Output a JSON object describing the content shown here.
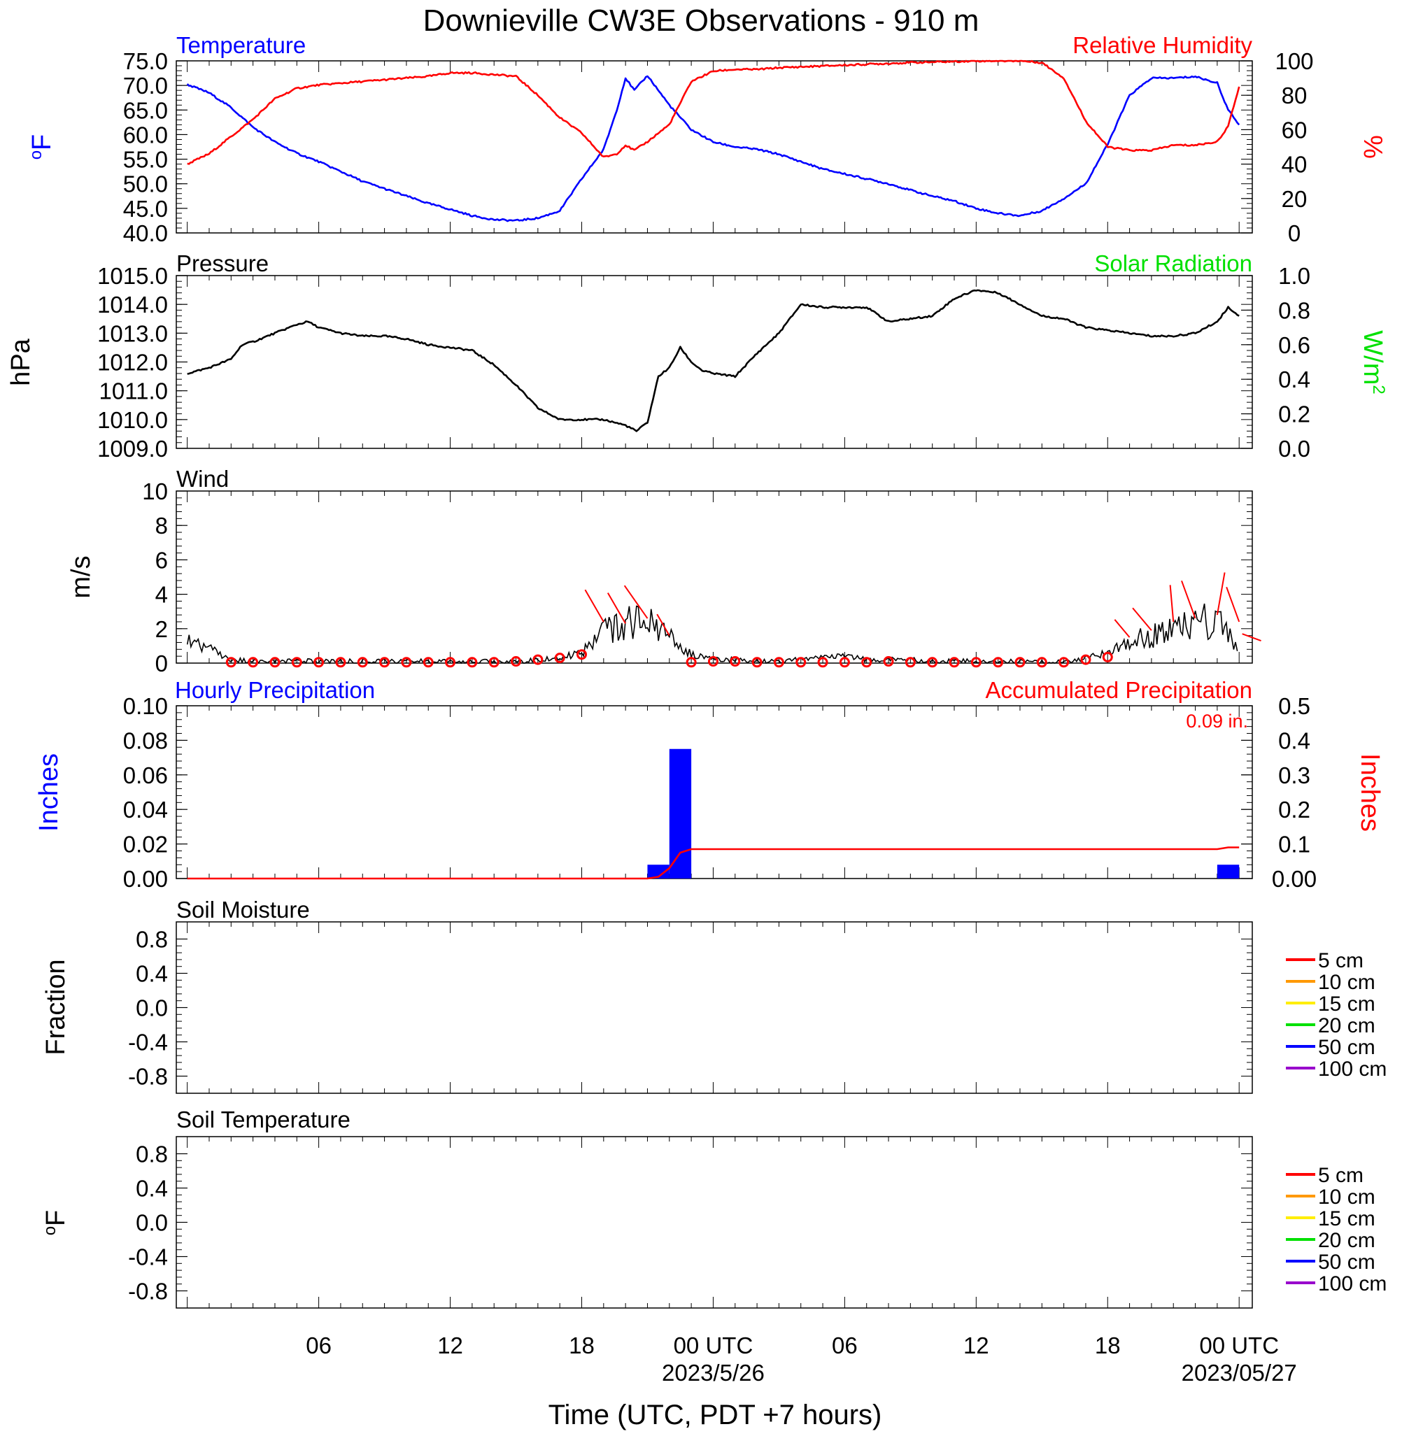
{
  "title": "Downieville CW3E Observations - 910 m",
  "xlabel": "Time (UTC, PDT +7 hours)",
  "x_ticks": [
    {
      "label": "06",
      "sublabel": ""
    },
    {
      "label": "12",
      "sublabel": ""
    },
    {
      "label": "18",
      "sublabel": ""
    },
    {
      "label": "00 UTC",
      "sublabel": "2023/5/26"
    },
    {
      "label": "06",
      "sublabel": ""
    },
    {
      "label": "12",
      "sublabel": ""
    },
    {
      "label": "18",
      "sublabel": ""
    },
    {
      "label": "00 UTC",
      "sublabel": "2023/05/27"
    }
  ],
  "colors": {
    "temperature": "#0000ff",
    "humidity": "#ff0000",
    "pressure": "#000000",
    "solar": "#00e000",
    "wind": "#000000",
    "wind_marks": "#ff0000",
    "hourly_precip": "#0000ff",
    "accum_precip": "#ff0000"
  },
  "chart_data": [
    {
      "type": "line",
      "title_left": "Temperature",
      "title_right": "Relative Humidity",
      "ylabel_left": "oF",
      "ylabel_right": "%",
      "ylim_left": [
        40,
        75
      ],
      "yticks_left": [
        "75.0",
        "70.0",
        "65.0",
        "60.0",
        "55.0",
        "50.0",
        "45.0",
        "40.0"
      ],
      "ylim_right": [
        0,
        100
      ],
      "yticks_right": [
        "100",
        "80",
        "60",
        "40",
        "20",
        "0"
      ],
      "x_hours": [
        0,
        1,
        2,
        3,
        4,
        5,
        6,
        7,
        8,
        9,
        10,
        11,
        12,
        13,
        14,
        15,
        16,
        17,
        18,
        19,
        19.6,
        20,
        20.4,
        21,
        22,
        23,
        24,
        25,
        26,
        27,
        28,
        29,
        30,
        31,
        32,
        33,
        34,
        35,
        36,
        37,
        38,
        39,
        40,
        41,
        42,
        43,
        44,
        45,
        46,
        47,
        47.5,
        48
      ],
      "series": [
        {
          "name": "Temperature",
          "values": [
            70.2,
            68.5,
            65.5,
            61.5,
            58.5,
            56.2,
            54.5,
            52.5,
            50.5,
            49,
            47.5,
            46,
            44.8,
            43.5,
            42.7,
            42.5,
            43,
            44.5,
            51,
            57,
            65,
            71.5,
            69,
            72,
            66,
            61,
            58.5,
            57.5,
            57,
            56,
            54.5,
            53,
            52,
            51,
            50,
            48.7,
            47.5,
            46.5,
            45,
            44,
            43.5,
            44.5,
            47,
            50,
            58,
            68,
            71.5,
            71.5,
            71.8,
            70.5,
            65,
            62
          ]
        },
        {
          "name": "Relative Humidity",
          "values": [
            40,
            46,
            56,
            66,
            78,
            84,
            86,
            87,
            88,
            89,
            90,
            91,
            93,
            93,
            92,
            91,
            80,
            67,
            58,
            44,
            46,
            51,
            48,
            53,
            63,
            88,
            94,
            95,
            95,
            96,
            96.5,
            97,
            97.5,
            98,
            98.5,
            99,
            99.3,
            99.6,
            100,
            100,
            100,
            99,
            90,
            65,
            50,
            48,
            48,
            51,
            51,
            53,
            62,
            85
          ]
        }
      ]
    },
    {
      "type": "line",
      "title_left": "Pressure",
      "title_right": "Solar Radiation",
      "ylabel_left": "hPa",
      "ylabel_right": "W/m",
      "ylabel_right_sup": "2",
      "ylim_left": [
        1009,
        1015
      ],
      "yticks_left": [
        "1015.0",
        "1014.0",
        "1013.0",
        "1012.0",
        "1011.0",
        "1010.0",
        "1009.0"
      ],
      "ylim_right": [
        0,
        1
      ],
      "yticks_right": [
        "1.0",
        "0.8",
        "0.6",
        "0.4",
        "0.2",
        "0.0"
      ],
      "x_hours": [
        0,
        1,
        2,
        2.5,
        3,
        4,
        5,
        5.5,
        6,
        7,
        8,
        9,
        10,
        11,
        12,
        13,
        14,
        15,
        16,
        17,
        18,
        19,
        20,
        20.5,
        21,
        21.5,
        22,
        22.5,
        23,
        23.5,
        24,
        25,
        26,
        27,
        28,
        29,
        30,
        31,
        32,
        33,
        34,
        35,
        36,
        37,
        38,
        39,
        40,
        41,
        42,
        43,
        44,
        45,
        46,
        47,
        47.5,
        48
      ],
      "series": [
        {
          "name": "Pressure",
          "values": [
            1011.6,
            1011.8,
            1012.1,
            1012.6,
            1012.7,
            1013.0,
            1013.3,
            1013.4,
            1013.2,
            1013.0,
            1012.9,
            1012.9,
            1012.8,
            1012.6,
            1012.5,
            1012.4,
            1011.9,
            1011.2,
            1010.4,
            1010.0,
            1010.0,
            1010.0,
            1009.8,
            1009.6,
            1009.9,
            1011.5,
            1011.8,
            1012.5,
            1012.0,
            1011.7,
            1011.6,
            1011.5,
            1012.3,
            1013.0,
            1014.0,
            1013.9,
            1013.9,
            1013.9,
            1013.4,
            1013.5,
            1013.6,
            1014.2,
            1014.5,
            1014.4,
            1014.0,
            1013.6,
            1013.5,
            1013.2,
            1013.1,
            1013.0,
            1012.9,
            1012.9,
            1013.0,
            1013.4,
            1013.9,
            1013.6
          ]
        }
      ]
    },
    {
      "type": "line",
      "title_left": "Wind",
      "ylabel_left": "m/s",
      "ylim_left": [
        0,
        10
      ],
      "yticks_left": [
        "10",
        "8",
        "6",
        "4",
        "2",
        "0"
      ],
      "x_hours": [
        0,
        1,
        2,
        3,
        4,
        5,
        6,
        7,
        8,
        9,
        10,
        11,
        12,
        13,
        14,
        15,
        16,
        17,
        18,
        19,
        20,
        21,
        22,
        23,
        24,
        25,
        26,
        27,
        28,
        29,
        30,
        31,
        32,
        33,
        34,
        35,
        36,
        37,
        38,
        39,
        40,
        41,
        42,
        43,
        44,
        45,
        46,
        47,
        48
      ],
      "series": [
        {
          "name": "Wind speed",
          "values": [
            1.3,
            0.8,
            0.2,
            0.1,
            0.1,
            0.1,
            0.1,
            0.1,
            0.1,
            0.1,
            0.1,
            0.1,
            0.1,
            0.1,
            0.1,
            0.1,
            0.2,
            0.3,
            0.6,
            2.0,
            2.3,
            2.4,
            1.5,
            0.5,
            0.2,
            0.2,
            0.1,
            0.1,
            0.2,
            0.3,
            0.4,
            0.2,
            0.2,
            0.2,
            0.1,
            0.1,
            0.1,
            0.1,
            0.1,
            0.1,
            0.1,
            0.3,
            0.6,
            1.2,
            1.6,
            2.0,
            2.3,
            2.5,
            0.6
          ]
        }
      ],
      "hourly_marks": [
        {
          "hour": 2,
          "speed": 0.05,
          "dir": null
        },
        {
          "hour": 3,
          "speed": 0.05,
          "dir": null
        },
        {
          "hour": 4,
          "speed": 0.05,
          "dir": null
        },
        {
          "hour": 5,
          "speed": 0.05,
          "dir": null
        },
        {
          "hour": 6,
          "speed": 0.05,
          "dir": null
        },
        {
          "hour": 7,
          "speed": 0.05,
          "dir": null
        },
        {
          "hour": 8,
          "speed": 0.05,
          "dir": null
        },
        {
          "hour": 9,
          "speed": 0.05,
          "dir": null
        },
        {
          "hour": 10,
          "speed": 0.05,
          "dir": null
        },
        {
          "hour": 11,
          "speed": 0.05,
          "dir": null
        },
        {
          "hour": 12,
          "speed": 0.05,
          "dir": null
        },
        {
          "hour": 13,
          "speed": 0.05,
          "dir": null
        },
        {
          "hour": 14,
          "speed": 0.05,
          "dir": null
        },
        {
          "hour": 15,
          "speed": 0.1,
          "dir": null
        },
        {
          "hour": 16,
          "speed": 0.2,
          "dir": null
        },
        {
          "hour": 17,
          "speed": 0.3,
          "dir": null
        },
        {
          "hour": 18,
          "speed": 0.5,
          "dir": null
        },
        {
          "hour": 19,
          "speed": 2.4,
          "dir": 330
        },
        {
          "hour": 20,
          "speed": 2.3,
          "dir": 330
        },
        {
          "hour": 21,
          "speed": 2.6,
          "dir": 325
        },
        {
          "hour": 22,
          "speed": 1.6,
          "dir": 330
        },
        {
          "hour": 23,
          "speed": 0.05,
          "dir": null
        },
        {
          "hour": 24,
          "speed": 0.1,
          "dir": null
        },
        {
          "hour": 25,
          "speed": 0.1,
          "dir": null
        },
        {
          "hour": 26,
          "speed": 0.05,
          "dir": null
        },
        {
          "hour": 27,
          "speed": 0.05,
          "dir": null
        },
        {
          "hour": 28,
          "speed": 0.05,
          "dir": null
        },
        {
          "hour": 29,
          "speed": 0.05,
          "dir": null
        },
        {
          "hour": 30,
          "speed": 0.05,
          "dir": null
        },
        {
          "hour": 31,
          "speed": 0.05,
          "dir": null
        },
        {
          "hour": 32,
          "speed": 0.1,
          "dir": null
        },
        {
          "hour": 33,
          "speed": 0.05,
          "dir": null
        },
        {
          "hour": 34,
          "speed": 0.05,
          "dir": null
        },
        {
          "hour": 35,
          "speed": 0.05,
          "dir": null
        },
        {
          "hour": 36,
          "speed": 0.05,
          "dir": null
        },
        {
          "hour": 37,
          "speed": 0.05,
          "dir": null
        },
        {
          "hour": 38,
          "speed": 0.05,
          "dir": null
        },
        {
          "hour": 39,
          "speed": 0.05,
          "dir": null
        },
        {
          "hour": 40,
          "speed": 0.05,
          "dir": null
        },
        {
          "hour": 41,
          "speed": 0.2,
          "dir": null
        },
        {
          "hour": 42,
          "speed": 0.35,
          "dir": null
        },
        {
          "hour": 43,
          "speed": 1.5,
          "dir": 320
        },
        {
          "hour": 44,
          "speed": 1.9,
          "dir": 320
        },
        {
          "hour": 45,
          "speed": 2.4,
          "dir": 355
        },
        {
          "hour": 46,
          "speed": 2.6,
          "dir": 340
        },
        {
          "hour": 47,
          "speed": 2.8,
          "dir": 10
        },
        {
          "hour": 48,
          "speed": 2.4,
          "dir": 340
        },
        {
          "hour": 49,
          "speed": 1.3,
          "dir": 290
        }
      ]
    },
    {
      "type": "bar",
      "title_left": "Hourly Precipitation",
      "title_right": "Accumulated Precipitation",
      "annotation": "0.09 in.",
      "ylabel_left": "Inches",
      "ylabel_right": "Inches",
      "ylim_left": [
        0,
        0.1
      ],
      "yticks_left": [
        "0.10",
        "0.08",
        "0.06",
        "0.04",
        "0.02",
        "0.00"
      ],
      "ylim_right": [
        0,
        0.5
      ],
      "yticks_right": [
        "0.5",
        "0.4",
        "0.3",
        "0.2",
        "0.1",
        "0.00"
      ],
      "bars": [
        {
          "hour": 21,
          "value": 0.008
        },
        {
          "hour": 22,
          "value": 0.075
        },
        {
          "hour": 47,
          "value": 0.008
        }
      ],
      "accumulated": {
        "x_hours": [
          0,
          21,
          21.5,
          22,
          22.5,
          23,
          47,
          47.5,
          48
        ],
        "values": [
          0,
          0,
          0.005,
          0.03,
          0.075,
          0.085,
          0.085,
          0.09,
          0.09
        ]
      }
    },
    {
      "type": "line",
      "title_left": "Soil Moisture",
      "ylabel_left": "Fraction",
      "ylim_left": [
        -1,
        1
      ],
      "yticks_left": [
        "0.8",
        "0.4",
        "0.0",
        "-0.4",
        "-0.8"
      ],
      "legend": [
        {
          "label": "5 cm",
          "color": "#ff0000"
        },
        {
          "label": "10 cm",
          "color": "#ff9900"
        },
        {
          "label": "15 cm",
          "color": "#ffee00"
        },
        {
          "label": "20 cm",
          "color": "#00e000"
        },
        {
          "label": "50 cm",
          "color": "#0000ff"
        },
        {
          "label": "100 cm",
          "color": "#9900cc"
        }
      ]
    },
    {
      "type": "line",
      "title_left": "Soil Temperature",
      "ylabel_left": "oF",
      "ylim_left": [
        -1,
        1
      ],
      "yticks_left": [
        "0.8",
        "0.4",
        "0.0",
        "-0.4",
        "-0.8"
      ],
      "legend": [
        {
          "label": "5 cm",
          "color": "#ff0000"
        },
        {
          "label": "10 cm",
          "color": "#ff9900"
        },
        {
          "label": "15 cm",
          "color": "#ffee00"
        },
        {
          "label": "20 cm",
          "color": "#00e000"
        },
        {
          "label": "50 cm",
          "color": "#0000ff"
        },
        {
          "label": "100 cm",
          "color": "#9900cc"
        }
      ]
    }
  ]
}
